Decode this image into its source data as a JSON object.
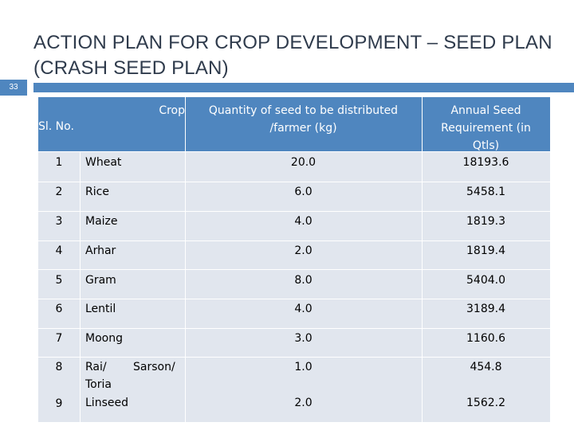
{
  "slide": {
    "number": "33",
    "title_lines": [
      "ACTION PLAN FOR CROP DEVELOPMENT – SEED PLAN",
      "(CRASH SEED PLAN)"
    ]
  },
  "table": {
    "headers": {
      "sl_no": "Sl. No.",
      "crop": "Crop",
      "quantity_line1": "Quantity of seed to be distributed",
      "quantity_line2": "/farmer (kg)",
      "annual_line1": "Annual Seed",
      "annual_line2": "Requirement (in",
      "annual_line3": "Qtls)"
    },
    "rows": [
      {
        "sl": "1",
        "crop": "Wheat",
        "qty": "20.0",
        "annual": "18193.6"
      },
      {
        "sl": "2",
        "crop": "Rice",
        "qty": "6.0",
        "annual": "5458.1"
      },
      {
        "sl": "3",
        "crop": "Maize",
        "qty": "4.0",
        "annual": "1819.3"
      },
      {
        "sl": "4",
        "crop": "Arhar",
        "qty": "2.0",
        "annual": "1819.4"
      },
      {
        "sl": "5",
        "crop": "Gram",
        "qty": "8.0",
        "annual": "5404.0"
      },
      {
        "sl": "6",
        "crop": "Lentil",
        "qty": "4.0",
        "annual": "3189.4"
      },
      {
        "sl": "7",
        "crop": "Moong",
        "qty": "3.0",
        "annual": "1160.6"
      },
      {
        "sl": "8",
        "crop_line1": "Rai/",
        "crop_line1b": "Sarson/",
        "crop_line2": "Toria",
        "qty": "1.0",
        "annual": "454.8"
      },
      {
        "sl": "9",
        "crop": "Linseed",
        "qty": "2.0",
        "annual": "1562.2"
      }
    ]
  }
}
